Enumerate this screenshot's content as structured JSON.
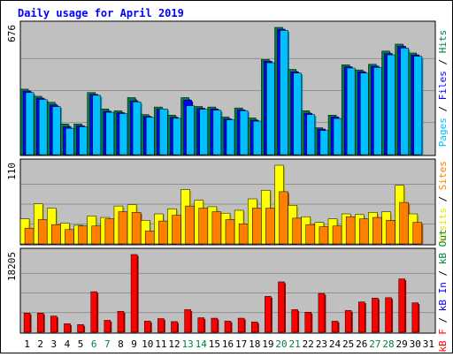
{
  "chart_data": {
    "type": "bar",
    "title": "Daily usage for April 2019",
    "x": [
      "1",
      "2",
      "3",
      "4",
      "5",
      "6",
      "7",
      "8",
      "9",
      "10",
      "11",
      "12",
      "13",
      "14",
      "15",
      "16",
      "17",
      "18",
      "19",
      "20",
      "21",
      "22",
      "23",
      "24",
      "25",
      "26",
      "27",
      "28",
      "29",
      "30",
      "31"
    ],
    "weekend_days": [
      "6",
      "7",
      "13",
      "14",
      "20",
      "21",
      "27",
      "28"
    ],
    "panels": [
      {
        "name": "pages-files-hits",
        "ymax": 676,
        "ymax_label": "676",
        "ylabel_parts": [
          {
            "text": "Pages",
            "color": "#00c0ff"
          },
          {
            "text": " / ",
            "color": "#000000"
          },
          {
            "text": "Files",
            "color": "#0000ff"
          },
          {
            "text": " / ",
            "color": "#000000"
          },
          {
            "text": "Hits",
            "color": "#008040"
          }
        ],
        "series": [
          {
            "name": "Hits",
            "color": "#008040",
            "values": [
              348,
              310,
              278,
              163,
              163,
              330,
              243,
              233,
              303,
              213,
              253,
              210,
              303,
              256,
              253,
              200,
              248,
              195,
              506,
              676,
              453,
              233,
              143,
              210,
              477,
              450,
              480,
              550,
              587,
              540,
              0
            ]
          },
          {
            "name": "Files",
            "color": "#0000ff",
            "values": [
              338,
              300,
              264,
              148,
              153,
              320,
              230,
              223,
              286,
              203,
              243,
              198,
              290,
              246,
              243,
              190,
              238,
              183,
              496,
              666,
              440,
              220,
              136,
              200,
              467,
              441,
              470,
              537,
              575,
              530,
              0
            ]
          },
          {
            "name": "Pages",
            "color": "#00c0ff",
            "values": [
              330,
              293,
              255,
              140,
              148,
              315,
              225,
              218,
              280,
              198,
              243,
              193,
              260,
              241,
              236,
              185,
              233,
              178,
              488,
              660,
              433,
              213,
              128,
              192,
              460,
              433,
              463,
              530,
              566,
              523,
              0
            ]
          }
        ]
      },
      {
        "name": "visits-sites",
        "ymax": 110,
        "ymax_label": "110",
        "ylabel_parts": [
          {
            "text": "Visits",
            "color": "#e8e800"
          },
          {
            "text": " / ",
            "color": "#000000"
          },
          {
            "text": "Sites",
            "color": "#ff8000"
          }
        ],
        "series": [
          {
            "name": "Visits",
            "color": "#ffff00",
            "values": [
              35,
              56,
              50,
              29,
              26,
              39,
              37,
              53,
              55,
              33,
              42,
              49,
              76,
              61,
              52,
              43,
              47,
              63,
              75,
              110,
              54,
              38,
              30,
              35,
              42,
              41,
              44,
              45,
              82,
              42,
              0
            ]
          },
          {
            "name": "Sites",
            "color": "#ff8000",
            "values": [
              22,
              34,
              27,
              20,
              25,
              25,
              35,
              45,
              44,
              18,
              32,
              40,
              53,
              50,
              45,
              34,
              28,
              50,
              50,
              73,
              36,
              27,
              24,
              25,
              38,
              35,
              37,
              33,
              58,
              30,
              0
            ]
          }
        ]
      },
      {
        "name": "kb",
        "ymax": 18205,
        "ymax_label": "18205",
        "ylabel_parts": [
          {
            "text": "kB F",
            "color": "#ff0000"
          },
          {
            "text": " / ",
            "color": "#000000"
          },
          {
            "text": "kB In",
            "color": "#0000ff"
          },
          {
            "text": " / ",
            "color": "#000000"
          },
          {
            "text": "kB Out",
            "color": "#008040"
          }
        ],
        "series": [
          {
            "name": "kB F",
            "color": "#ff0000",
            "values": [
              4500,
              4500,
              3800,
              2000,
              1800,
              9500,
              2800,
              4900,
              18205,
              2600,
              3200,
              2500,
              5300,
              3400,
              3300,
              2600,
              3300,
              2400,
              8400,
              11800,
              5300,
              4700,
              9100,
              2600,
              5100,
              7100,
              8000,
              8100,
              12500,
              6900,
              0
            ]
          }
        ]
      }
    ],
    "colors": {
      "background": "#ffffff",
      "panel_background": "#c0c0c0",
      "title": "#0000ff",
      "weekend_label": "#008040",
      "weekday_label": "#000000",
      "gridline": "#808080"
    }
  }
}
